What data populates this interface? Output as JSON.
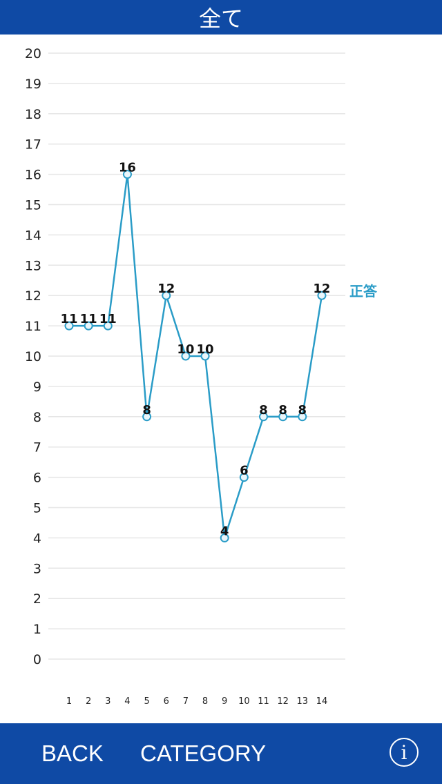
{
  "header": {
    "title": "全て"
  },
  "footer": {
    "back_label": "BACK",
    "category_label": "CATEGORY",
    "info_icon": "info-icon"
  },
  "colors": {
    "bar": "#0f4aa5",
    "line": "#2a9cc7",
    "grid": "#e6e6e6"
  },
  "chart_data": {
    "type": "line",
    "x": [
      "1",
      "2",
      "3",
      "4",
      "5",
      "6",
      "7",
      "8",
      "9",
      "10",
      "11",
      "12",
      "13",
      "14"
    ],
    "series": [
      {
        "name": "正答",
        "values": [
          11,
          11,
          11,
          16,
          8,
          12,
          10,
          10,
          4,
          6,
          8,
          8,
          8,
          12
        ]
      }
    ],
    "ylim": [
      0,
      20
    ],
    "yticks": [
      "0",
      "1",
      "2",
      "3",
      "4",
      "5",
      "6",
      "7",
      "8",
      "9",
      "10",
      "11",
      "12",
      "13",
      "14",
      "15",
      "16",
      "17",
      "18",
      "19",
      "20"
    ],
    "grid": true,
    "legend": "right",
    "data_labels": true
  }
}
